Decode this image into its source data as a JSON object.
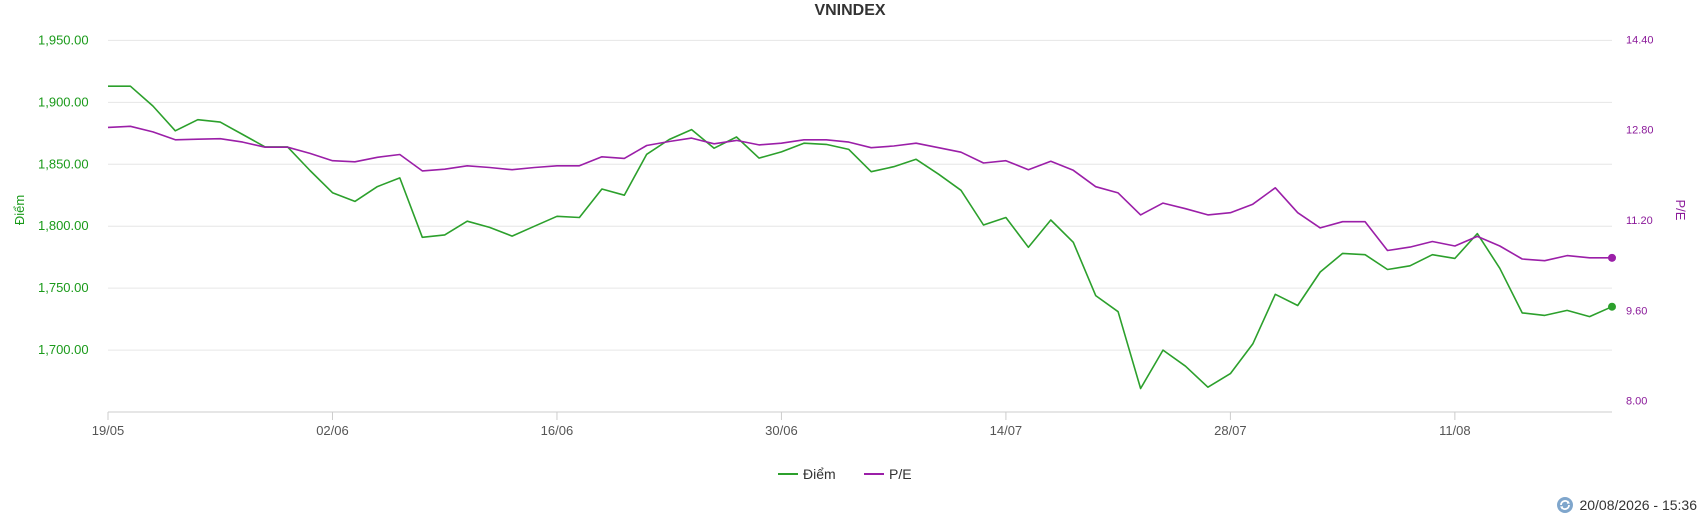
{
  "chart_data": {
    "type": "line",
    "title": "VNINDEX",
    "y_left_label": "Điểm",
    "y_right_label": "P/E",
    "y_left": {
      "min": 1650,
      "max": 1960,
      "ticks": [
        "1,950.00",
        "1,900.00",
        "1,850.00",
        "1,800.00",
        "1,750.00",
        "1,700.00"
      ],
      "tick_values": [
        1950,
        1900,
        1850,
        1800,
        1750,
        1700
      ]
    },
    "y_right": {
      "min": 7.8,
      "max": 14.6,
      "ticks": [
        "14.40",
        "12.80",
        "11.20",
        "9.60",
        "8.00"
      ],
      "tick_values": [
        14.4,
        12.8,
        11.2,
        9.6,
        8.0
      ]
    },
    "x_ticks": [
      {
        "label": "19/05",
        "index": 0
      },
      {
        "label": "02/06",
        "index": 10
      },
      {
        "label": "16/06",
        "index": 20
      },
      {
        "label": "30/06",
        "index": 30
      },
      {
        "label": "14/07",
        "index": 40
      },
      {
        "label": "28/07",
        "index": 50
      },
      {
        "label": "11/08",
        "index": 60
      }
    ],
    "grid": true,
    "legend_position": "bottom-center",
    "series": [
      {
        "name": "Điểm",
        "color": "#2ca02c",
        "values": [
          1913,
          1913,
          1897,
          1877,
          1886,
          1884,
          1874,
          1864,
          1864,
          1845,
          1827,
          1820,
          1832,
          1839,
          1791,
          1793,
          1804,
          1799,
          1792,
          1800,
          1808,
          1807,
          1830,
          1825,
          1858,
          1870,
          1878,
          1863,
          1872,
          1855,
          1860,
          1867,
          1866,
          1862,
          1844,
          1848,
          1854,
          1842,
          1829,
          1801,
          1807,
          1783,
          1805,
          1787,
          1744,
          1731,
          1669,
          1700,
          1687,
          1670,
          1681,
          1705,
          1745,
          1736,
          1763,
          1778,
          1777,
          1765,
          1768,
          1777,
          1774,
          1794,
          1766,
          1730,
          1728,
          1732,
          1727,
          1735
        ]
      },
      {
        "name": "P/E",
        "color": "#9b1fa8",
        "values": [
          12.84,
          12.86,
          12.76,
          12.62,
          12.63,
          12.64,
          12.58,
          12.49,
          12.49,
          12.38,
          12.25,
          12.23,
          12.31,
          12.36,
          12.07,
          12.1,
          12.16,
          12.13,
          12.09,
          12.13,
          12.16,
          12.16,
          12.32,
          12.29,
          12.52,
          12.59,
          12.65,
          12.55,
          12.61,
          12.53,
          12.56,
          12.62,
          12.62,
          12.58,
          12.48,
          12.51,
          12.56,
          12.48,
          12.4,
          12.21,
          12.25,
          12.09,
          12.24,
          12.08,
          11.79,
          11.68,
          11.29,
          11.5,
          11.4,
          11.29,
          11.33,
          11.48,
          11.77,
          11.33,
          11.06,
          11.17,
          11.17,
          10.66,
          10.72,
          10.82,
          10.74,
          10.91,
          10.74,
          10.51,
          10.48,
          10.57,
          10.53,
          10.53
        ]
      }
    ]
  },
  "timestamp": "20/08/2026 - 15:36"
}
